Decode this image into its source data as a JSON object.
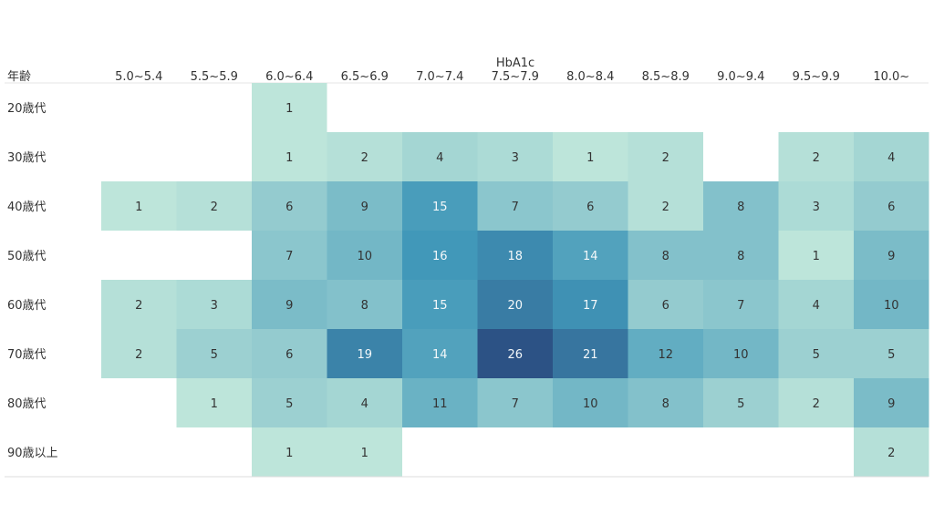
{
  "chart_data": {
    "type": "heatmap",
    "title": "",
    "col_header_label": "HbA1c",
    "row_header_label": "年齢",
    "columns": [
      "5.0~5.4",
      "5.5~5.9",
      "6.0~6.4",
      "6.5~6.9",
      "7.0~7.4",
      "7.5~7.9",
      "8.0~8.4",
      "8.5~8.9",
      "9.0~9.4",
      "9.5~9.9",
      "10.0~"
    ],
    "rows": [
      "20歳代",
      "30歳代",
      "40歳代",
      "50歳代",
      "60歳代",
      "70歳代",
      "80歳代",
      "90歳以上"
    ],
    "values": [
      [
        null,
        null,
        1,
        null,
        null,
        null,
        null,
        null,
        null,
        null,
        null
      ],
      [
        null,
        null,
        1,
        2,
        4,
        3,
        1,
        2,
        null,
        2,
        4
      ],
      [
        1,
        2,
        6,
        9,
        15,
        7,
        6,
        2,
        8,
        3,
        6
      ],
      [
        null,
        null,
        7,
        10,
        16,
        18,
        14,
        8,
        8,
        1,
        9
      ],
      [
        2,
        3,
        9,
        8,
        15,
        20,
        17,
        6,
        7,
        4,
        10
      ],
      [
        2,
        5,
        6,
        19,
        14,
        26,
        21,
        12,
        10,
        5,
        5
      ],
      [
        null,
        1,
        5,
        4,
        11,
        7,
        10,
        8,
        5,
        2,
        9
      ],
      [
        null,
        null,
        1,
        1,
        null,
        null,
        null,
        null,
        null,
        null,
        2
      ]
    ],
    "color_scale": {
      "min": 1,
      "max": 26,
      "low_color": "#bde5da",
      "mid_color": "#4198b9",
      "high_color": "#2c5285"
    }
  }
}
